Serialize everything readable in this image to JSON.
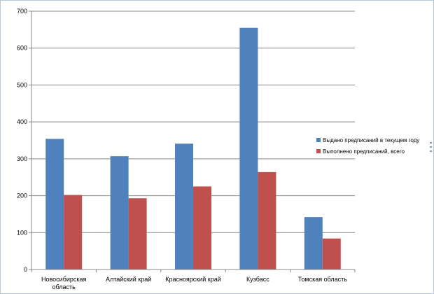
{
  "chart_data": {
    "type": "bar",
    "title": "",
    "xlabel": "",
    "ylabel": "",
    "ylim": [
      0,
      700
    ],
    "yticks": [
      0,
      100,
      200,
      300,
      400,
      500,
      600,
      700
    ],
    "grid": true,
    "legend_position": "right",
    "categories": [
      [
        "Новосибирская",
        "область"
      ],
      [
        "Алтайский край"
      ],
      [
        "Красноярский край"
      ],
      [
        "Кузбасс"
      ],
      [
        "Томская область"
      ]
    ],
    "series": [
      {
        "name": "Выдано предписаний в текущем году",
        "color": "#4f81bd",
        "values": [
          354,
          307,
          341,
          655,
          142
        ]
      },
      {
        "name": "Выполнено предписаний, всего",
        "color": "#c0504d",
        "values": [
          202,
          193,
          225,
          264,
          84
        ]
      }
    ]
  }
}
